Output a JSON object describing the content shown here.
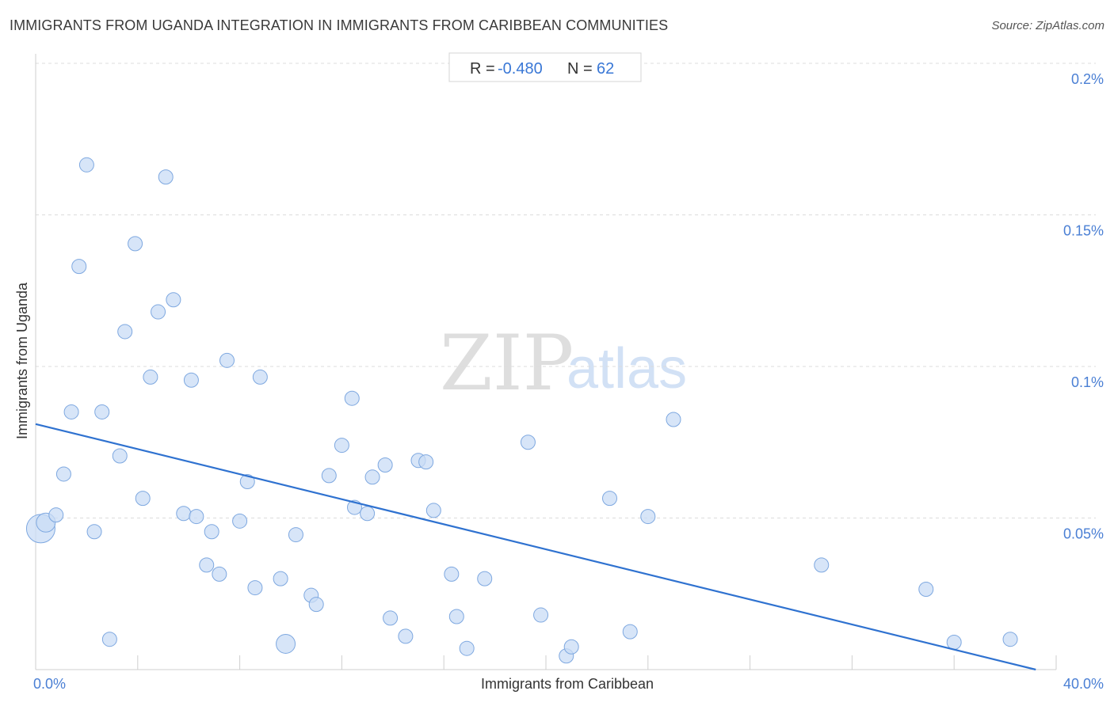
{
  "header": {
    "title": "IMMIGRANTS FROM UGANDA INTEGRATION IN IMMIGRANTS FROM CARIBBEAN COMMUNITIES",
    "source": "Source: ZipAtlas.com"
  },
  "stats": {
    "r_label": "R =",
    "r_value": "-0.480",
    "n_label": "N =",
    "n_value": "62"
  },
  "watermark": {
    "zip": "ZIP",
    "atlas": "atlas"
  },
  "colors": {
    "point_fill": "#c9dcf5",
    "point_stroke": "#7ea8e0",
    "trend": "#2f72d0",
    "tick": "#4a7fd4"
  },
  "chart_data": {
    "type": "scatter",
    "title": "IMMIGRANTS FROM UGANDA INTEGRATION IN IMMIGRANTS FROM CARIBBEAN COMMUNITIES",
    "xlabel": "Immigrants from Caribbean",
    "ylabel": "Immigrants from Uganda",
    "xlim": [
      0,
      40
    ],
    "ylim": [
      0,
      0.2
    ],
    "x_tick_labels": [
      "0.0%",
      "40.0%"
    ],
    "y_ticks": [
      {
        "value": 0.05,
        "label": "0.05%"
      },
      {
        "value": 0.1,
        "label": "0.1%"
      },
      {
        "value": 0.15,
        "label": "0.15%"
      },
      {
        "value": 0.2,
        "label": "0.2%"
      }
    ],
    "grid": true,
    "trendline": {
      "x": [
        0,
        39.2
      ],
      "y": [
        0.081,
        0.0
      ]
    },
    "points": [
      {
        "x": 0.2,
        "y": 0.0465,
        "size": "large"
      },
      {
        "x": 0.4,
        "y": 0.0485,
        "size": "medium"
      },
      {
        "x": 0.8,
        "y": 0.051
      },
      {
        "x": 1.1,
        "y": 0.0645
      },
      {
        "x": 1.4,
        "y": 0.085
      },
      {
        "x": 1.7,
        "y": 0.133
      },
      {
        "x": 2.0,
        "y": 0.1665
      },
      {
        "x": 2.3,
        "y": 0.0455
      },
      {
        "x": 2.6,
        "y": 0.085
      },
      {
        "x": 2.9,
        "y": 0.01
      },
      {
        "x": 3.3,
        "y": 0.0705
      },
      {
        "x": 3.5,
        "y": 0.1115
      },
      {
        "x": 3.9,
        "y": 0.1405
      },
      {
        "x": 4.2,
        "y": 0.0565
      },
      {
        "x": 4.5,
        "y": 0.0965
      },
      {
        "x": 4.8,
        "y": 0.118
      },
      {
        "x": 5.1,
        "y": 0.1625
      },
      {
        "x": 5.4,
        "y": 0.122
      },
      {
        "x": 5.8,
        "y": 0.0515
      },
      {
        "x": 6.1,
        "y": 0.0955
      },
      {
        "x": 6.3,
        "y": 0.0505
      },
      {
        "x": 6.7,
        "y": 0.0345
      },
      {
        "x": 6.9,
        "y": 0.0455
      },
      {
        "x": 7.2,
        "y": 0.0315
      },
      {
        "x": 7.5,
        "y": 0.102
      },
      {
        "x": 8.0,
        "y": 0.049
      },
      {
        "x": 8.3,
        "y": 0.062
      },
      {
        "x": 8.6,
        "y": 0.027
      },
      {
        "x": 8.8,
        "y": 0.0965
      },
      {
        "x": 9.6,
        "y": 0.03
      },
      {
        "x": 9.8,
        "y": 0.0085,
        "size": "medium"
      },
      {
        "x": 10.2,
        "y": 0.0445
      },
      {
        "x": 10.8,
        "y": 0.0245
      },
      {
        "x": 11.0,
        "y": 0.0215
      },
      {
        "x": 11.5,
        "y": 0.064
      },
      {
        "x": 12.0,
        "y": 0.074
      },
      {
        "x": 12.4,
        "y": 0.0895
      },
      {
        "x": 12.5,
        "y": 0.0535
      },
      {
        "x": 13.0,
        "y": 0.0515
      },
      {
        "x": 13.2,
        "y": 0.0635
      },
      {
        "x": 13.7,
        "y": 0.0675
      },
      {
        "x": 13.9,
        "y": 0.017
      },
      {
        "x": 14.5,
        "y": 0.011
      },
      {
        "x": 15.0,
        "y": 0.069
      },
      {
        "x": 15.3,
        "y": 0.0685
      },
      {
        "x": 15.6,
        "y": 0.0525
      },
      {
        "x": 16.3,
        "y": 0.0315
      },
      {
        "x": 16.5,
        "y": 0.0175
      },
      {
        "x": 16.9,
        "y": 0.007
      },
      {
        "x": 17.6,
        "y": 0.03
      },
      {
        "x": 19.3,
        "y": 0.075
      },
      {
        "x": 19.8,
        "y": 0.018
      },
      {
        "x": 20.8,
        "y": 0.0045
      },
      {
        "x": 21.0,
        "y": 0.0075
      },
      {
        "x": 22.5,
        "y": 0.0565
      },
      {
        "x": 23.3,
        "y": 0.0125
      },
      {
        "x": 24.0,
        "y": 0.0505
      },
      {
        "x": 25.0,
        "y": 0.0825
      },
      {
        "x": 30.8,
        "y": 0.0345
      },
      {
        "x": 34.9,
        "y": 0.0265
      },
      {
        "x": 36.0,
        "y": 0.009
      },
      {
        "x": 38.2,
        "y": 0.01
      }
    ]
  }
}
